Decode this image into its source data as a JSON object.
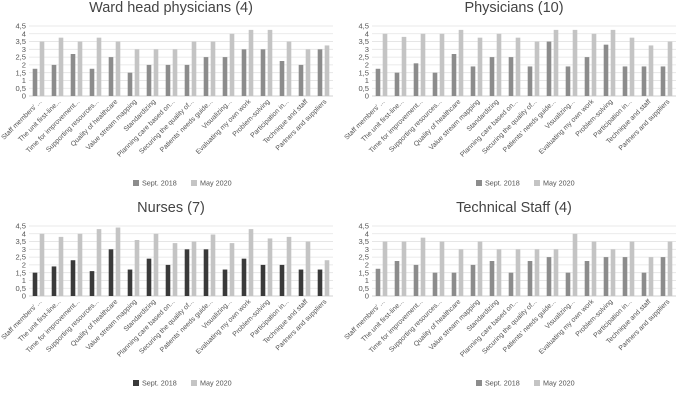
{
  "chart_data": [
    {
      "type": "bar",
      "title": "Ward head physicians (4)",
      "categories": [
        "Staff members' ...",
        "The unit first-line...",
        "Time for improvement...",
        "Supporting resources...",
        "Quality of healthcare",
        "Value stream mapping",
        "Standardizing",
        "Planning care based on...",
        "Securing the quality of...",
        "Patients' needs guide...",
        "Visualizing...",
        "Evaluating my own work",
        "Problem-solving",
        "Participation in...",
        "Technique and staff",
        "Partners and suppliers"
      ],
      "series": [
        {
          "name": "Sept. 2018",
          "color": "#8c8c8c",
          "values": [
            1.75,
            2.0,
            2.7,
            1.75,
            2.5,
            1.5,
            2.0,
            2.0,
            2.0,
            2.5,
            2.5,
            3.0,
            3.0,
            2.25,
            2.0,
            3.0
          ]
        },
        {
          "name": "May 2020",
          "color": "#c4c4c4",
          "values": [
            3.5,
            3.75,
            3.5,
            3.75,
            3.5,
            3.0,
            3.0,
            3.0,
            3.5,
            3.5,
            4.0,
            4.25,
            4.25,
            3.5,
            3.0,
            3.25
          ]
        }
      ],
      "yticks": [
        "0",
        "0,5",
        "1",
        "1,5",
        "2",
        "2,5",
        "3",
        "3,5",
        "4",
        "4,5"
      ],
      "ylim": [
        0,
        4.5
      ],
      "xlabel": "",
      "ylabel": "",
      "legend": "bottom"
    },
    {
      "type": "bar",
      "title": "Physicians (10)",
      "categories": [
        "Staff members' ...",
        "The unit first-line...",
        "Time for improvement...",
        "Supporting resources...",
        "Quality of healthcare",
        "Value stream mapping",
        "Standardizing",
        "Planning care based on...",
        "Securing the quality of...",
        "Patients' needs guide...",
        "Visualizing...",
        "Evaluating my own work",
        "Problem-solving",
        "Participation in...",
        "Technique and staff",
        "Partners and suppliers"
      ],
      "series": [
        {
          "name": "Sept. 2018",
          "color": "#8c8c8c",
          "values": [
            1.75,
            1.5,
            2.1,
            1.5,
            2.7,
            1.9,
            2.5,
            2.5,
            1.9,
            3.5,
            1.9,
            2.5,
            3.3,
            1.9,
            1.9,
            1.9
          ]
        },
        {
          "name": "May 2020",
          "color": "#c4c4c4",
          "values": [
            4.0,
            3.8,
            4.0,
            4.0,
            4.25,
            3.75,
            4.0,
            3.75,
            3.5,
            4.25,
            4.25,
            4.0,
            4.25,
            3.75,
            3.25,
            3.5
          ]
        }
      ],
      "yticks": [
        "0",
        "0,5",
        "1",
        "1,5",
        "2",
        "2,5",
        "3",
        "3,5",
        "4",
        "4,5"
      ],
      "ylim": [
        0,
        4.5
      ],
      "xlabel": "",
      "ylabel": "",
      "legend": "bottom"
    },
    {
      "type": "bar",
      "title": "Nurses (7)",
      "categories": [
        "Staff members' ...",
        "The unit first-line...",
        "Time for improvement...",
        "Supporting resources...",
        "Quality of healthcare",
        "Value stream mapping",
        "Standardizing",
        "Planning care based on...",
        "Securing the quality of...",
        "Patients' needs guide...",
        "Visualizing...",
        "Evaluating my own work",
        "Problem-solving",
        "Participation in...",
        "Technique and staff",
        "Partners and suppliers"
      ],
      "series": [
        {
          "name": "Sept. 2018",
          "color": "#3a3a3a",
          "values": [
            1.5,
            1.9,
            2.3,
            1.6,
            3.0,
            1.7,
            2.4,
            2.0,
            3.0,
            3.0,
            1.7,
            2.4,
            2.0,
            2.0,
            1.7,
            1.7
          ]
        },
        {
          "name": "May 2020",
          "color": "#c4c4c4",
          "values": [
            4.0,
            3.8,
            4.0,
            4.3,
            4.4,
            3.6,
            4.0,
            3.4,
            3.5,
            3.95,
            3.4,
            4.3,
            3.7,
            3.8,
            3.5,
            2.3
          ]
        }
      ],
      "yticks": [
        "0",
        "0,5",
        "1",
        "1,5",
        "2",
        "2,5",
        "3",
        "3,5",
        "4",
        "4,5"
      ],
      "ylim": [
        0,
        4.5
      ],
      "xlabel": "",
      "ylabel": "",
      "legend": "bottom"
    },
    {
      "type": "bar",
      "title": "Technical Staff (4)",
      "categories": [
        "Staff members' ...",
        "The unit first-line...",
        "Time for improvement...",
        "Supporting resources...",
        "Quality of healthcare",
        "Value stream mapping",
        "Standardizing",
        "Planning care based on...",
        "Securing the quality of...",
        "Patients' needs guide...",
        "Visualizing...",
        "Evaluating my own work",
        "Problem-solving",
        "Participation in...",
        "Technique and staff",
        "Partners and suppliers"
      ],
      "series": [
        {
          "name": "Sept. 2018",
          "color": "#8c8c8c",
          "values": [
            1.75,
            2.25,
            2.0,
            1.5,
            1.5,
            2.0,
            2.25,
            1.5,
            2.25,
            2.5,
            1.5,
            2.25,
            2.5,
            2.5,
            1.5,
            2.5
          ]
        },
        {
          "name": "May 2020",
          "color": "#c4c4c4",
          "values": [
            3.5,
            3.5,
            3.75,
            3.5,
            3.0,
            3.5,
            3.0,
            3.0,
            3.0,
            3.0,
            4.0,
            3.5,
            3.0,
            3.5,
            2.5,
            3.5
          ]
        }
      ],
      "yticks": [
        "0",
        "0,5",
        "1",
        "1,5",
        "2",
        "2,5",
        "3",
        "3,5",
        "4",
        "4,5"
      ],
      "ylim": [
        0,
        4.5
      ],
      "xlabel": "",
      "ylabel": "",
      "legend": "bottom"
    }
  ]
}
